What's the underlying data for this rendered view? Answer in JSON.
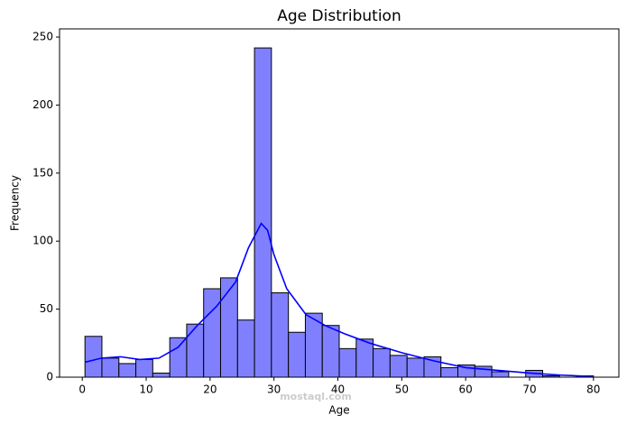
{
  "chart_data": {
    "type": "histogram",
    "title": "Age Distribution",
    "xlabel": "Age",
    "ylabel": "Frequency",
    "watermark": "mostaql.com",
    "bins": [
      0.42,
      3.07,
      5.73,
      8.38,
      11.03,
      13.69,
      16.34,
      18.99,
      21.64,
      24.3,
      26.95,
      29.6,
      32.26,
      34.91,
      37.56,
      40.21,
      42.87,
      45.52,
      48.17,
      50.83,
      53.48,
      56.13,
      58.78,
      61.44,
      64.09,
      66.74,
      69.4,
      72.05,
      74.7,
      77.35,
      80.0
    ],
    "counts": [
      30,
      14,
      10,
      13,
      3,
      29,
      39,
      65,
      73,
      42,
      242,
      62,
      33,
      47,
      38,
      21,
      28,
      21,
      16,
      14,
      15,
      7,
      9,
      8,
      4,
      0,
      5,
      1,
      0,
      1
    ],
    "color": "#8080ff",
    "edgecolor": "#000000",
    "kde": {
      "color": "#0000ff",
      "x": [
        0.42,
        3,
        6,
        9,
        12,
        15,
        18,
        21,
        24,
        26,
        28,
        29,
        30,
        32,
        35,
        38,
        41,
        45,
        50,
        55,
        60,
        65,
        70,
        75,
        80
      ],
      "y": [
        11,
        14,
        15,
        13,
        14,
        22,
        38,
        52,
        70,
        95,
        113,
        108,
        90,
        65,
        46,
        38,
        32,
        25,
        18,
        12,
        7,
        5,
        3,
        1.5,
        0.5
      ]
    },
    "xlim": [
      -3.56,
      83.98
    ],
    "ylim": [
      0,
      256
    ],
    "xticks": [
      0,
      10,
      20,
      30,
      40,
      50,
      60,
      70,
      80
    ],
    "yticks": [
      0,
      50,
      100,
      150,
      200,
      250
    ]
  }
}
